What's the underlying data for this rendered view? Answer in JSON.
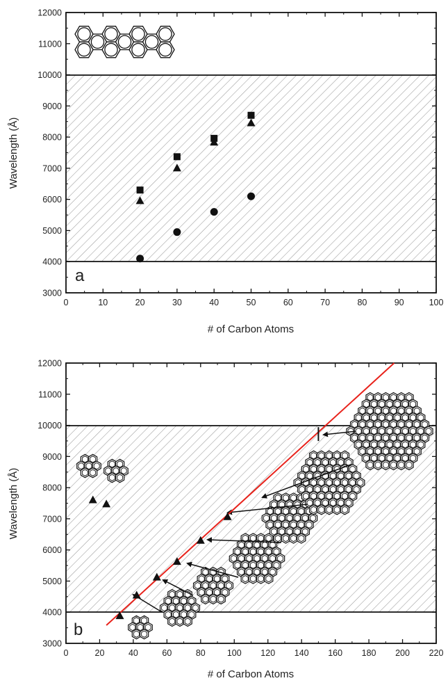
{
  "colors": {
    "fit_line": "#e8221b",
    "markers": "#111111",
    "hatch": "#9a9a9a"
  },
  "chart_data": [
    {
      "type": "scatter",
      "panel_label": "a",
      "xlabel": "# of Carbon Atoms",
      "ylabel": "Wavelength (Å)",
      "xlim": [
        0,
        100
      ],
      "ylim": [
        3000,
        12000
      ],
      "x_ticks": [
        "0",
        "10",
        "20",
        "30",
        "40",
        "50",
        "60",
        "70",
        "80",
        "90",
        "100"
      ],
      "y_ticks": [
        "3000",
        "4000",
        "5000",
        "6000",
        "7000",
        "8000",
        "9000",
        "10000",
        "11000",
        "12000"
      ],
      "shaded_band": [
        4000,
        10000
      ],
      "series": [
        {
          "marker": "square",
          "points": [
            [
              20,
              6300
            ],
            [
              30,
              7370
            ],
            [
              40,
              7960
            ],
            [
              50,
              8700
            ]
          ]
        },
        {
          "marker": "triangle",
          "points": [
            [
              20,
              5950
            ],
            [
              30,
              7000
            ],
            [
              40,
              7830
            ],
            [
              50,
              8450
            ]
          ]
        },
        {
          "marker": "circle",
          "points": [
            [
              20,
              4100
            ],
            [
              30,
              4950
            ],
            [
              40,
              5600
            ],
            [
              50,
              6100
            ]
          ]
        }
      ],
      "inset_icon": "linear-polyacene-molecule-icon"
    },
    {
      "type": "scatter",
      "panel_label": "b",
      "xlabel": "# of Carbon Atoms",
      "ylabel": "Wavelength (Å)",
      "xlim": [
        0,
        220
      ],
      "ylim": [
        3000,
        12000
      ],
      "x_ticks": [
        "0",
        "20",
        "40",
        "60",
        "80",
        "100",
        "120",
        "140",
        "160",
        "180",
        "200",
        "220"
      ],
      "y_ticks": [
        "3000",
        "4000",
        "5000",
        "6000",
        "7000",
        "8000",
        "9000",
        "10000",
        "11000",
        "12000"
      ],
      "shaded_band": [
        4000,
        10000
      ],
      "series": [
        {
          "marker": "triangle",
          "points": [
            [
              16,
              7600
            ],
            [
              24,
              7470
            ],
            [
              32,
              3880
            ],
            [
              42,
              4540
            ],
            [
              54,
              5120
            ],
            [
              66,
              5620
            ],
            [
              80,
              6300
            ],
            [
              96,
              7060
            ]
          ]
        }
      ],
      "fit_line": [
        [
          24,
          3580
        ],
        [
          195,
          12000
        ]
      ],
      "marker_150": [
        150,
        9720
      ],
      "molecule_icons": [
        "small-pah-molecule-icon",
        "coronene-molecule-icon",
        "circumcoronene-molecule-icon",
        "large-pah-molecule-icon"
      ]
    }
  ]
}
